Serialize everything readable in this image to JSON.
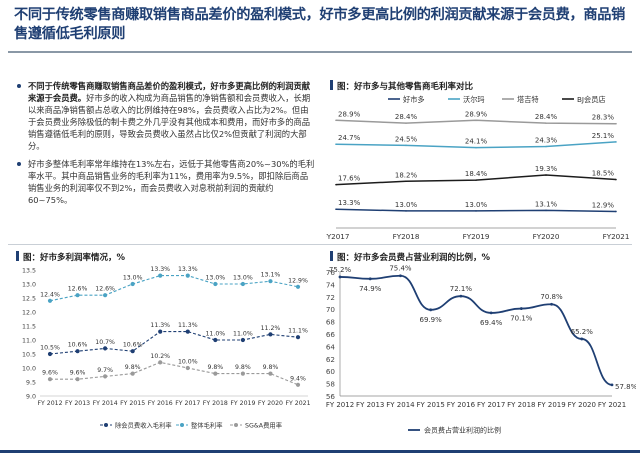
{
  "title": "不同于传统零售商赚取销售商品差价的盈利模式，好市多更高比例的利润贡献来源于会员费，商品销售遵循低毛利原则",
  "bullets": [
    {
      "bold": "不同于传统零售商赚取销售商品差价的盈利模式，好市多更高比例的利润贡献来源于会员费。",
      "text": "好市多的收入构成为商品销售的净销售额和会员费收入，长期以来商品净销售额占总收入的比例维持在98%，会员费收入占比为2%。但由于会员费业务除极低的制卡费之外几乎没有其他成本和费用，而好市多的商品销售遵循低毛利的原则，导致会员费收入虽然占比仅2%但贡献了利润的大部分。"
    },
    {
      "bold": "",
      "text": "好市多整体毛利率常年维持在13%左右，远低于其他零售商20%~30%的毛利率水平。其中商品销售业务的毛利率为11%，费用率为9.5%，即扣除后商品销售业务的利润率仅不到2%，而会员费收入对息税前利润的贡献约60~75%。"
    }
  ],
  "chart1": {
    "title": "图：好市多与其他零售商毛利率对比",
    "legend": [
      "好市多",
      "沃尔玛",
      "塔吉特",
      "BJ会员店"
    ],
    "colors": [
      "#1f3f73",
      "#4aa3c4",
      "#9a9a9a",
      "#1c1c1c"
    ]
  },
  "chart2": {
    "title": "图：好市多利润率情况，%",
    "legend": [
      "除会员费收入毛利率",
      "整体毛利率",
      "SG&A费用率"
    ],
    "colors": [
      "#1f3f73",
      "#4aa3c4",
      "#9a9a9a"
    ]
  },
  "chart3": {
    "title": "图：好市多会员费占营业利润的比例，%",
    "legend": [
      "会员费占营业利润的比例"
    ],
    "colors": [
      "#1f3f73"
    ]
  },
  "chart_data": [
    {
      "type": "line",
      "categories": [
        "FY2017",
        "FY2018",
        "FY2019",
        "FY2020",
        "FY2021"
      ],
      "series": [
        {
          "name": "好市多",
          "values": [
            13.3,
            13.0,
            13.0,
            13.1,
            12.9
          ]
        },
        {
          "name": "沃尔玛",
          "values": [
            24.7,
            24.5,
            24.1,
            24.3,
            25.1
          ]
        },
        {
          "name": "塔吉特",
          "values": [
            28.9,
            28.4,
            28.9,
            28.4,
            28.3
          ]
        },
        {
          "name": "BJ会员店",
          "values": [
            17.6,
            18.2,
            18.4,
            19.3,
            18.5
          ]
        }
      ],
      "labels": [
        [
          "13.3%",
          "13.0%",
          "13.0%",
          "13.1%",
          "12.9%"
        ],
        [
          "24.7%",
          "24.5%",
          "24.1%",
          "24.3%",
          "25.1%"
        ],
        [
          "28.9%",
          "28.4%",
          "28.9%",
          "28.4%",
          "28.3%"
        ],
        [
          "17.6%",
          "18.2%",
          "18.4%",
          "19.3%",
          "18.5%"
        ]
      ],
      "ylim": [
        10,
        30
      ]
    },
    {
      "type": "line",
      "categories": [
        "FY 2012",
        "FY 2013",
        "FY 2014",
        "FY 2015",
        "FY 2016",
        "FY 2017",
        "FY 2018",
        "FY 2019",
        "FY 2020",
        "FY 2021"
      ],
      "series": [
        {
          "name": "除会员费收入毛利率",
          "values": [
            10.5,
            10.6,
            10.7,
            10.6,
            11.3,
            11.3,
            11.0,
            11.0,
            11.2,
            11.1
          ]
        },
        {
          "name": "整体毛利率",
          "values": [
            12.4,
            12.6,
            12.6,
            13.0,
            13.3,
            13.3,
            13.0,
            13.0,
            13.1,
            12.9
          ]
        },
        {
          "name": "SG&A费用率",
          "values": [
            9.6,
            9.6,
            9.7,
            9.8,
            10.2,
            10.0,
            9.8,
            9.8,
            9.8,
            9.4
          ]
        }
      ],
      "yticks": [
        "13.5",
        "13.0",
        "12.5",
        "12.0",
        "11.5",
        "11.0",
        "10.5",
        "10.0",
        "9.5",
        "9.0"
      ],
      "ylim": [
        9.0,
        13.5
      ]
    },
    {
      "type": "line",
      "categories": [
        "FY 2012",
        "FY 2013",
        "FY 2014",
        "FY 2015",
        "FY 2016",
        "FY 2017",
        "FY 2018",
        "FY 2019",
        "FY 2020",
        "FY 2021"
      ],
      "series": [
        {
          "name": "会员费占营业利润的比例",
          "values": [
            75.2,
            74.9,
            75.4,
            69.9,
            72.1,
            69.4,
            70.1,
            70.8,
            65.2,
            57.8
          ]
        }
      ],
      "yticks": [
        "76",
        "74",
        "72",
        "70",
        "68",
        "66",
        "64",
        "62",
        "60",
        "58",
        "56"
      ],
      "ylim": [
        56,
        76
      ]
    }
  ]
}
